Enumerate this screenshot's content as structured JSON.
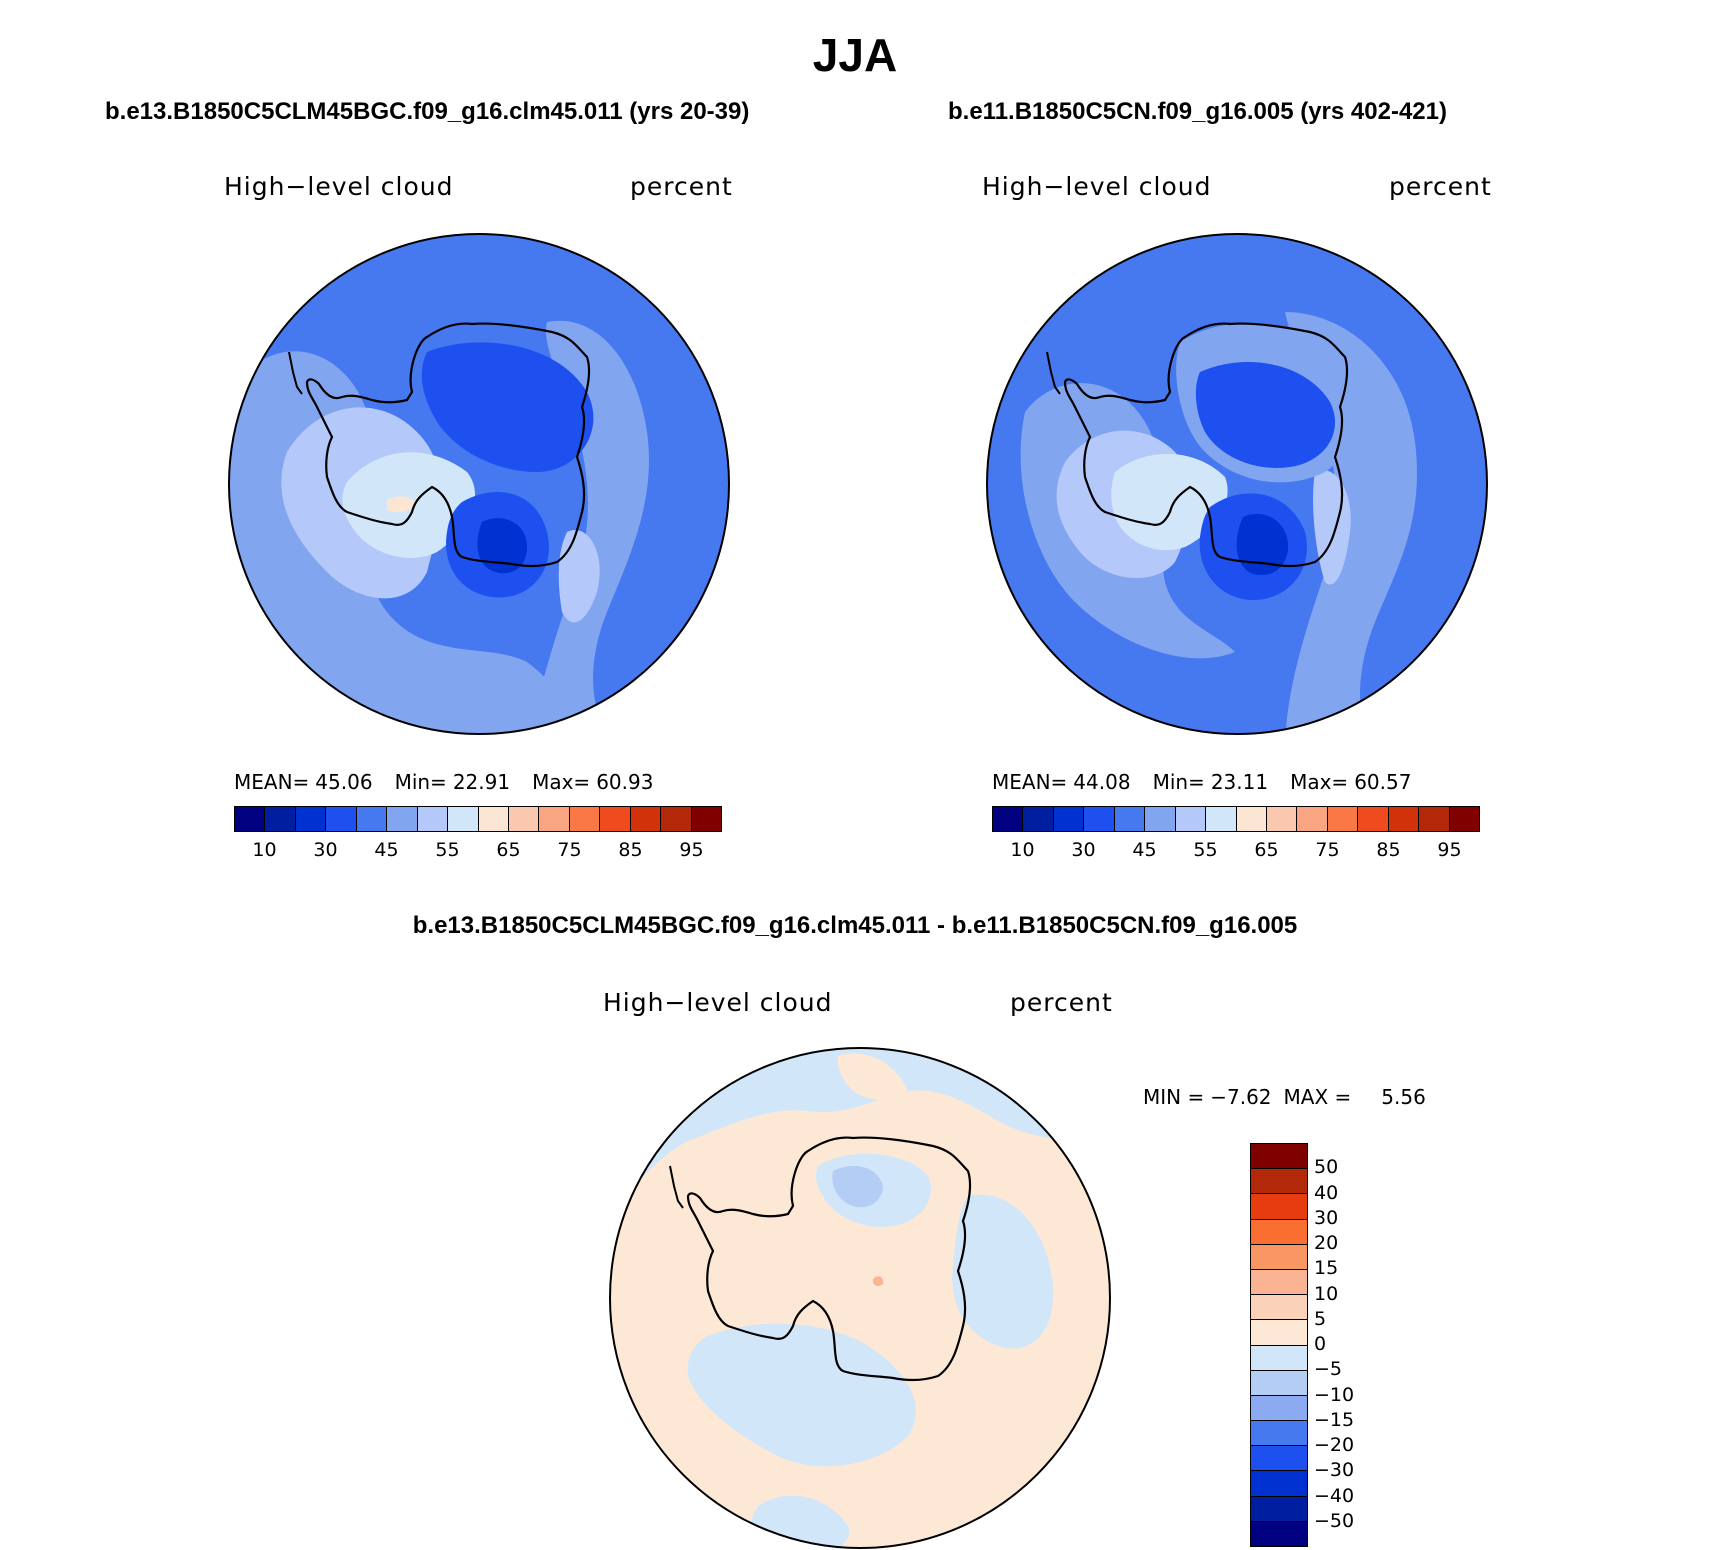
{
  "page_title": "JJA",
  "colors": {
    "blue_scale": [
      "#000080",
      "#001ea0",
      "#0032d2",
      "#1e50f0",
      "#4678f0",
      "#82a5f0",
      "#b4c8fa",
      "#d2e6fa",
      "#fae6d2",
      "#fac8af",
      "#faa582",
      "#fa7846",
      "#f04b1e",
      "#d2320a",
      "#b4280a",
      "#800000"
    ],
    "diff_scale": [
      "#800000",
      "#b4280a",
      "#e63c0f",
      "#fa6e32",
      "#fa9664",
      "#fab493",
      "#fad2b9",
      "#fde8d5",
      "#d2e6fa",
      "#b4cdf5",
      "#8caaf0",
      "#4678f0",
      "#1e50f0",
      "#0032d2",
      "#001ea0",
      "#000080"
    ],
    "coast": "#000000"
  },
  "panels": [
    {
      "case_title": "b.e13.B1850C5CLM45BGC.f09_g16.clm45.011 (yrs 20-39)",
      "left_label": "High−level cloud",
      "right_label": "percent",
      "stats": {
        "mean_label": "MEAN=",
        "mean": "45.06",
        "min_label": "Min=",
        "min": "22.91",
        "max_label": "Max=",
        "max": "60.93"
      },
      "ticks": [
        "10",
        "30",
        "45",
        "55",
        "65",
        "75",
        "85",
        "95"
      ]
    },
    {
      "case_title": "b.e11.B1850C5CN.f09_g16.005 (yrs 402-421)",
      "left_label": "High−level cloud",
      "right_label": "percent",
      "stats": {
        "mean_label": "MEAN=",
        "mean": "44.08",
        "min_label": "Min=",
        "min": "23.11",
        "max_label": "Max=",
        "max": "60.57"
      },
      "ticks": [
        "10",
        "30",
        "45",
        "55",
        "65",
        "75",
        "85",
        "95"
      ]
    }
  ],
  "diff_panel": {
    "case_title": "b.e13.B1850C5CLM45BGC.f09_g16.clm45.011 - b.e11.B1850C5CN.f09_g16.005",
    "left_label": "High−level cloud",
    "right_label": "percent",
    "stats": {
      "min_label": "MIN =",
      "min": "−7.62",
      "max_label": "MAX =",
      "max": "5.56"
    },
    "ticks": [
      "50",
      "40",
      "30",
      "20",
      "15",
      "10",
      "5",
      "0",
      "−5",
      "−10",
      "−15",
      "−20",
      "−30",
      "−40",
      "−50"
    ]
  },
  "chart_data": [
    {
      "type": "heatmap",
      "projection": "south polar stereographic",
      "title": "b.e13.B1850C5CLM45BGC.f09_g16.clm45.011 (yrs 20-39)",
      "variable": "High-level cloud",
      "units": "percent",
      "mean": 45.06,
      "min": 22.91,
      "max": 60.93,
      "colorbar_levels": [
        10,
        20,
        30,
        40,
        45,
        50,
        55,
        60,
        65,
        70,
        75,
        80,
        85,
        90,
        95
      ],
      "colorbar_tick_labels": [
        10,
        30,
        45,
        55,
        65,
        75,
        85,
        95
      ]
    },
    {
      "type": "heatmap",
      "projection": "south polar stereographic",
      "title": "b.e11.B1850C5CN.f09_g16.005 (yrs 402-421)",
      "variable": "High-level cloud",
      "units": "percent",
      "mean": 44.08,
      "min": 23.11,
      "max": 60.57,
      "colorbar_levels": [
        10,
        20,
        30,
        40,
        45,
        50,
        55,
        60,
        65,
        70,
        75,
        80,
        85,
        90,
        95
      ],
      "colorbar_tick_labels": [
        10,
        30,
        45,
        55,
        65,
        75,
        85,
        95
      ]
    },
    {
      "type": "heatmap",
      "projection": "south polar stereographic",
      "title": "b.e13.B1850C5CLM45BGC.f09_g16.clm45.011 - b.e11.B1850C5CN.f09_g16.005",
      "variable": "High-level cloud",
      "units": "percent",
      "min": -7.62,
      "max": 5.56,
      "colorbar_levels": [
        50,
        40,
        30,
        20,
        15,
        10,
        5,
        0,
        -5,
        -10,
        -15,
        -20,
        -30,
        -40,
        -50
      ]
    }
  ]
}
